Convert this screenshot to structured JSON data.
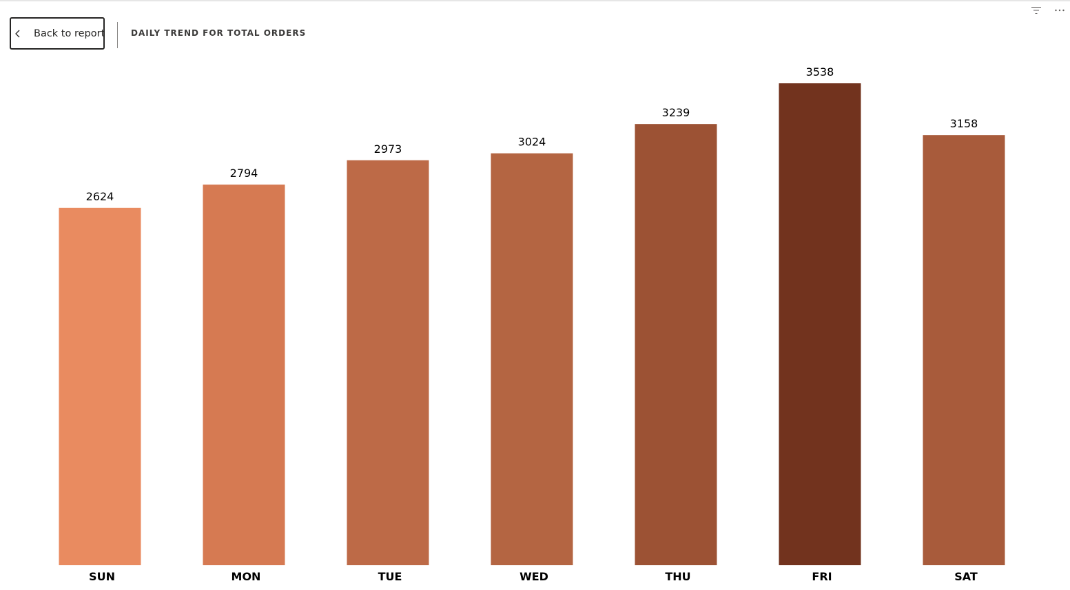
{
  "header": {
    "back_label": "Back to report",
    "title": "DAILY TREND FOR TOTAL ORDERS"
  },
  "toolbar": {
    "filter_icon": "filter-icon",
    "more_icon": "more-options-icon"
  },
  "chart_data": {
    "type": "bar",
    "title": "DAILY TREND FOR TOTAL ORDERS",
    "categories": [
      "SUN",
      "MON",
      "TUE",
      "WED",
      "THU",
      "FRI",
      "SAT"
    ],
    "values": [
      2624,
      2794,
      2973,
      3024,
      3239,
      3538,
      3158
    ],
    "colors": [
      "#e98b60",
      "#d67a52",
      "#bd6a47",
      "#b46542",
      "#9c5234",
      "#72331e",
      "#a85b3b"
    ],
    "xlabel": "",
    "ylabel": "",
    "ylim": [
      0,
      3538
    ],
    "grid": false,
    "data_labels": true
  }
}
